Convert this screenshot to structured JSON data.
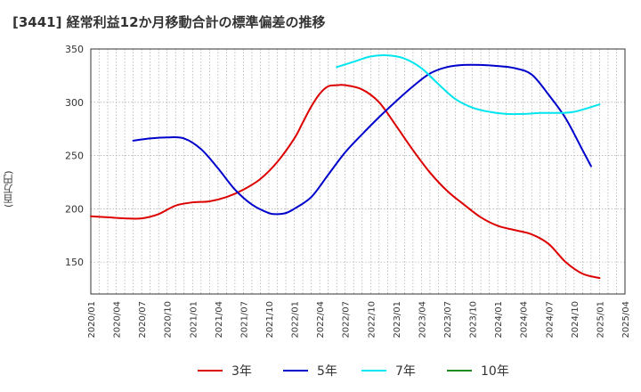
{
  "chart_data": {
    "type": "line",
    "title": "[3441] 経常利益12か月移動合計の標準偏差の推移",
    "xlabel": "",
    "ylabel": "(百万円)",
    "ylim": [
      120,
      350
    ],
    "yticks": [
      150,
      200,
      250,
      300,
      350
    ],
    "xticks": [
      "2020/01",
      "2020/04",
      "2020/07",
      "2020/10",
      "2021/01",
      "2021/04",
      "2021/07",
      "2021/10",
      "2022/01",
      "2022/04",
      "2022/07",
      "2022/10",
      "2023/01",
      "2023/04",
      "2023/07",
      "2023/10",
      "2024/01",
      "2024/04",
      "2024/07",
      "2024/10",
      "2025/01",
      "2025/04"
    ],
    "grid": true,
    "legend_position": "bottom",
    "x_unit": "month index from 2020/01",
    "series": [
      {
        "name": "3年",
        "color": "#dd0000",
        "x": [
          0,
          2,
          4,
          6,
          8,
          10,
          12,
          14,
          16,
          18,
          20,
          22,
          24,
          25,
          26,
          27,
          28,
          29,
          30,
          32,
          34,
          36,
          38,
          40,
          42,
          44,
          46,
          48,
          50,
          52,
          54,
          56,
          58,
          60
        ],
        "y": [
          193,
          192,
          191,
          191,
          195,
          203,
          206,
          207,
          211,
          218,
          228,
          244,
          266,
          281,
          296,
          308,
          315,
          316,
          316,
          312,
          300,
          278,
          255,
          234,
          217,
          204,
          192,
          184,
          180,
          176,
          167,
          150,
          139,
          135
        ]
      },
      {
        "name": "5年",
        "color": "#0000cc",
        "x": [
          5,
          7,
          9,
          11,
          13,
          15,
          17,
          19,
          21,
          22,
          23,
          24,
          26,
          28,
          30,
          32,
          34,
          36,
          38,
          40,
          42,
          44,
          46,
          48,
          50,
          52,
          54,
          56,
          58,
          59
        ],
        "y": [
          264,
          266,
          267,
          266,
          256,
          238,
          218,
          204,
          196,
          195,
          196,
          200,
          211,
          232,
          253,
          270,
          286,
          301,
          315,
          327,
          333,
          335,
          335,
          334,
          332,
          326,
          307,
          285,
          255,
          240
        ]
      },
      {
        "name": "7年",
        "color": "#00e5ee",
        "x": [
          29,
          31,
          33,
          35,
          37,
          39,
          41,
          43,
          45,
          47,
          49,
          51,
          53,
          55,
          57,
          60
        ],
        "y": [
          333,
          338,
          343,
          344,
          341,
          332,
          317,
          303,
          295,
          291,
          289,
          289,
          290,
          290,
          291,
          298
        ]
      },
      {
        "name": "10年",
        "color": "#228b22",
        "x": [],
        "y": []
      }
    ]
  }
}
